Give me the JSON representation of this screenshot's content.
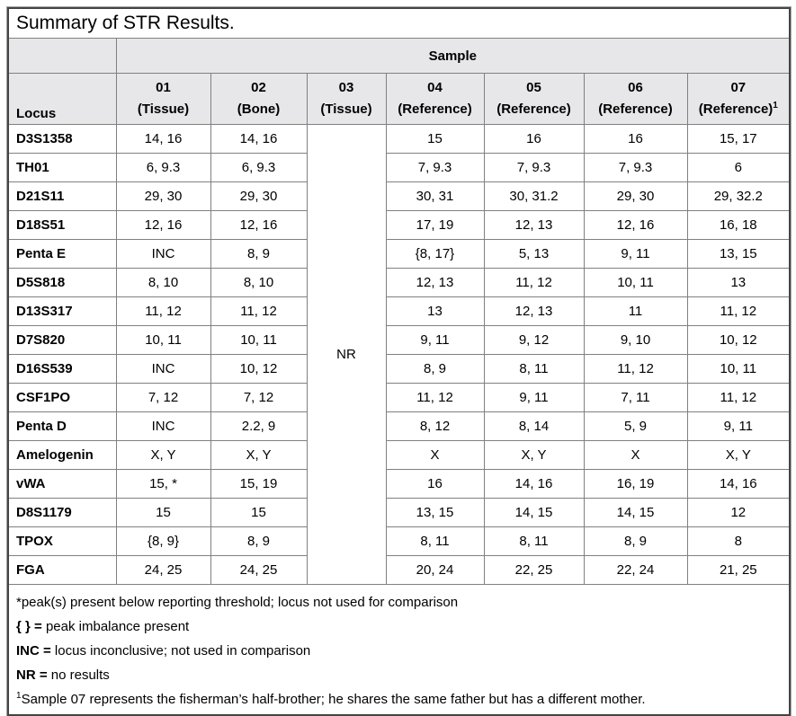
{
  "title": "Summary of STR Results.",
  "table": {
    "sample_group_header": "Sample",
    "locus_header": "Locus",
    "nr_value": "NR",
    "columns": [
      {
        "id": "01",
        "type": "(Tissue)",
        "sup": ""
      },
      {
        "id": "02",
        "type": "(Bone)",
        "sup": ""
      },
      {
        "id": "03",
        "type": "(Tissue)",
        "sup": ""
      },
      {
        "id": "04",
        "type": "(Reference)",
        "sup": ""
      },
      {
        "id": "05",
        "type": "(Reference)",
        "sup": ""
      },
      {
        "id": "06",
        "type": "(Reference)",
        "sup": ""
      },
      {
        "id": "07",
        "type": "(Reference)",
        "sup": "1"
      }
    ],
    "rows": [
      {
        "locus": "D3S1358",
        "values": [
          "14, 16",
          "14, 16",
          "15",
          "16",
          "16",
          "15, 17"
        ]
      },
      {
        "locus": "TH01",
        "values": [
          "6, 9.3",
          "6, 9.3",
          "7, 9.3",
          "7, 9.3",
          "7, 9.3",
          "6"
        ]
      },
      {
        "locus": "D21S11",
        "values": [
          "29, 30",
          "29, 30",
          "30, 31",
          "30, 31.2",
          "29, 30",
          "29, 32.2"
        ]
      },
      {
        "locus": "D18S51",
        "values": [
          "12, 16",
          "12, 16",
          "17, 19",
          "12, 13",
          "12, 16",
          "16, 18"
        ]
      },
      {
        "locus": "Penta E",
        "values": [
          "INC",
          "8, 9",
          "{8, 17}",
          "5, 13",
          "9, 11",
          "13, 15"
        ]
      },
      {
        "locus": "D5S818",
        "values": [
          "8, 10",
          "8, 10",
          "12, 13",
          "11, 12",
          "10, 11",
          "13"
        ]
      },
      {
        "locus": "D13S317",
        "values": [
          "11, 12",
          "11, 12",
          "13",
          "12, 13",
          "11",
          "11, 12"
        ]
      },
      {
        "locus": "D7S820",
        "values": [
          "10, 11",
          "10, 11",
          "9, 11",
          "9, 12",
          "9, 10",
          "10, 12"
        ]
      },
      {
        "locus": "D16S539",
        "values": [
          "INC",
          "10, 12",
          "8, 9",
          "8, 11",
          "11, 12",
          "10, 11"
        ]
      },
      {
        "locus": "CSF1PO",
        "values": [
          "7, 12",
          "7, 12",
          "11, 12",
          "9, 11",
          "7, 11",
          "11, 12"
        ]
      },
      {
        "locus": "Penta D",
        "values": [
          "INC",
          "2.2, 9",
          "8, 12",
          "8, 14",
          "5, 9",
          "9, 11"
        ]
      },
      {
        "locus": "Amelogenin",
        "values": [
          "X, Y",
          "X, Y",
          "X",
          "X, Y",
          "X",
          "X, Y"
        ]
      },
      {
        "locus": "vWA",
        "values": [
          "15, *",
          "15, 19",
          "16",
          "14, 16",
          "16, 19",
          "14, 16"
        ]
      },
      {
        "locus": "D8S1179",
        "values": [
          "15",
          "15",
          "13, 15",
          "14, 15",
          "14, 15",
          "12"
        ]
      },
      {
        "locus": "TPOX",
        "values": [
          "{8, 9}",
          "8, 9",
          "8, 11",
          "8, 11",
          "8, 9",
          "8"
        ]
      },
      {
        "locus": "FGA",
        "values": [
          "24, 25",
          "24, 25",
          "20, 24",
          "22, 25",
          "22, 24",
          "21, 25"
        ]
      }
    ]
  },
  "footnotes": [
    {
      "sup": "",
      "bold": "",
      "text": "*peak(s) present below reporting threshold; locus not used for comparison"
    },
    {
      "sup": "",
      "bold": "{ } =",
      "text": " peak imbalance present"
    },
    {
      "sup": "",
      "bold": "INC =",
      "text": " locus inconclusive; not used in comparison"
    },
    {
      "sup": "",
      "bold": "NR =",
      "text": " no results"
    },
    {
      "sup": "1",
      "bold": "",
      "text": "Sample 07 represents the fisherman’s half-brother; he shares the same father but has a different mother."
    }
  ],
  "colors": {
    "header_fill": "#e7e7e9",
    "grid_line": "#808080",
    "outer_border": "#444444",
    "text": "#000000",
    "background": "#ffffff"
  }
}
